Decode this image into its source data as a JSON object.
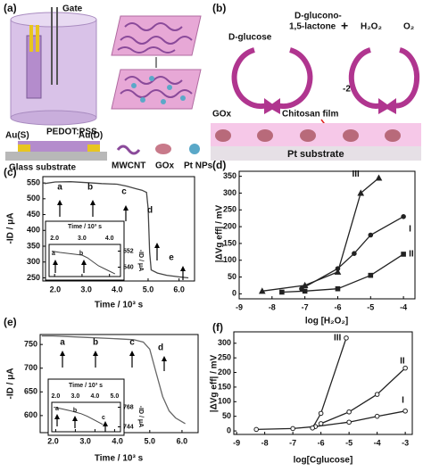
{
  "panel_a": {
    "label": "(a)",
    "gate": "Gate",
    "pedot": "PEDOT:PSS",
    "source": "Au(S)",
    "drain": "Au(D)",
    "substrate": "Glass substrate",
    "legend": [
      "MWCNT",
      "GOx",
      "Pt NPs"
    ]
  },
  "panel_b": {
    "label": "(b)",
    "reactant": "D-glucose",
    "product": [
      "D-glucono-",
      "1,5-lactone"
    ],
    "plus": "+",
    "peroxide": "H₂O₂",
    "oxygen": "O₂",
    "electrons": "-2e",
    "enzyme": "GOx",
    "film": "Chitosan film",
    "substrate": "Pt substrate"
  },
  "chart_data": [
    {
      "type": "line",
      "panel": "(c)",
      "xlabel": "Time / 10³ s",
      "ylabel": "-ID / μA",
      "xlim": [
        1.6,
        6.5
      ],
      "ylim": [
        240,
        570
      ],
      "xticks": [
        {
          "value": 2,
          "label": "2.0"
        },
        {
          "value": 3,
          "label": "3.0"
        },
        {
          "value": 4,
          "label": "4.0"
        },
        {
          "value": 5,
          "label": "5.0"
        },
        {
          "value": 6,
          "label": "6.0"
        }
      ],
      "yticks": [
        250,
        300,
        350,
        400,
        450,
        500,
        550
      ],
      "series": [
        {
          "color": "#444444",
          "x": [
            1.65,
            2.0,
            2.5,
            3.0,
            3.5,
            4.0,
            4.3,
            4.6,
            4.8,
            4.95,
            5.0,
            5.05,
            5.1,
            5.3,
            5.6,
            6.0,
            6.3
          ],
          "values": [
            548,
            553,
            554,
            551,
            548,
            546,
            540,
            532,
            527,
            520,
            470,
            330,
            275,
            265,
            258,
            253,
            250
          ]
        }
      ],
      "annotations": [
        "a",
        "b",
        "c",
        "d",
        "e"
      ]
    },
    {
      "type": "line",
      "xlabel": "Time / 10³ s",
      "ylabel": "-ID / μA",
      "ytick_side": "right",
      "xlim": [
        1.8,
        4.4
      ],
      "ylim": [
        533,
        557
      ],
      "xticks": [
        {
          "value": 2,
          "label": "2.0"
        },
        {
          "value": 3,
          "label": "3.0"
        },
        {
          "value": 4,
          "label": "4.0"
        }
      ],
      "yticks": [
        540,
        552
      ],
      "series": [
        {
          "color": "#444444",
          "x": [
            1.9,
            2.2,
            2.6,
            3.0,
            3.2,
            3.4,
            3.6,
            3.9,
            4.2
          ],
          "values": [
            552,
            551,
            550,
            549,
            547,
            544,
            541,
            538,
            535
          ]
        }
      ],
      "annotations": [
        "a",
        "b"
      ]
    },
    {
      "type": "line",
      "panel": "(d)",
      "xlabel": "log [H₂O₂]",
      "ylabel": "|ΔVg eff| / mV",
      "xlim": [
        -9,
        -3.65
      ],
      "ylim": [
        -15,
        365
      ],
      "xticks": [
        -9,
        -8,
        -7,
        -6,
        -5,
        -4
      ],
      "yticks": [
        0,
        50,
        100,
        150,
        200,
        250,
        300,
        350
      ],
      "series": [
        {
          "name": "I",
          "color": "#222222",
          "marker": "circle",
          "filled": true,
          "x": [
            -7.1,
            -6,
            -5.5,
            -5,
            -4
          ],
          "values": [
            15,
            75,
            120,
            175,
            230
          ]
        },
        {
          "name": "II",
          "color": "#222222",
          "marker": "square",
          "filled": true,
          "x": [
            -7.7,
            -7,
            -6,
            -5,
            -4
          ],
          "values": [
            5,
            8,
            15,
            55,
            118
          ]
        },
        {
          "name": "III",
          "color": "#222222",
          "marker": "triangle",
          "filled": true,
          "x": [
            -8.3,
            -7,
            -6,
            -5.3,
            -4.75
          ],
          "values": [
            8,
            25,
            65,
            300,
            345
          ]
        }
      ]
    },
    {
      "type": "line",
      "panel": "(e)",
      "xlabel": "Time / 10³ s",
      "ylabel": "-ID / μA",
      "xlim": [
        1.6,
        6.5
      ],
      "ylim": [
        564,
        771
      ],
      "xticks": [
        {
          "value": 2,
          "label": "2.0"
        },
        {
          "value": 3,
          "label": "3.0"
        },
        {
          "value": 4,
          "label": "4.0"
        },
        {
          "value": 5,
          "label": "5.0"
        },
        {
          "value": 6,
          "label": "6.0"
        }
      ],
      "yticks": [
        600,
        650,
        700,
        750
      ],
      "series": [
        {
          "color": "#666666",
          "x": [
            1.65,
            2.0,
            3.0,
            4.0,
            4.5,
            4.8,
            5.0,
            5.2,
            5.4,
            5.6,
            5.8,
            6.1
          ],
          "values": [
            768,
            768,
            765,
            762,
            760,
            755,
            740,
            690,
            640,
            610,
            595,
            583
          ]
        }
      ],
      "annotations": [
        "a",
        "b",
        "c",
        "d"
      ]
    },
    {
      "type": "line",
      "xlabel": "Time / 10³ s",
      "ylabel": "-ID / μA",
      "ytick_side": "right",
      "xlim": [
        1.8,
        5.3
      ],
      "ylim": [
        738,
        774
      ],
      "xticks": [
        {
          "value": 2,
          "label": "2.0"
        },
        {
          "value": 3,
          "label": "3.0"
        },
        {
          "value": 4,
          "label": "4.0"
        },
        {
          "value": 5,
          "label": "5.0"
        }
      ],
      "yticks": [
        744,
        768
      ],
      "series": [
        {
          "color": "#444444",
          "x": [
            1.9,
            2.3,
            2.7,
            3.0,
            3.3,
            3.6,
            4.0,
            4.4
          ],
          "values": [
            768,
            766,
            764,
            762,
            760,
            757,
            752,
            747
          ]
        }
      ],
      "annotations": [
        "a",
        "b",
        "c"
      ]
    },
    {
      "type": "line",
      "panel": "(f)",
      "xlabel": "log[Cglucose]",
      "ylabel": "|ΔVg eff| / mV",
      "xlim": [
        -9.1,
        -2.75
      ],
      "ylim": [
        -12,
        339
      ],
      "xticks": [
        -9,
        -8,
        -7,
        -6,
        -5,
        -4,
        -3
      ],
      "yticks": [
        0,
        50,
        100,
        150,
        200,
        250,
        300
      ],
      "series": [
        {
          "name": "I",
          "color": "#222222",
          "marker": "circle",
          "filled": false,
          "x": [
            -8.3,
            -7,
            -6.2,
            -5,
            -4,
            -3
          ],
          "values": [
            5,
            8,
            15,
            30,
            50,
            68
          ]
        },
        {
          "name": "II",
          "color": "#222222",
          "marker": "circle",
          "filled": false,
          "x": [
            -6,
            -5,
            -4,
            -3
          ],
          "values": [
            25,
            65,
            125,
            215
          ]
        },
        {
          "name": "III",
          "color": "#222222",
          "marker": "circle",
          "filled": false,
          "x": [
            -6.3,
            -6,
            -5.1
          ],
          "values": [
            10,
            60,
            318
          ]
        }
      ]
    }
  ]
}
